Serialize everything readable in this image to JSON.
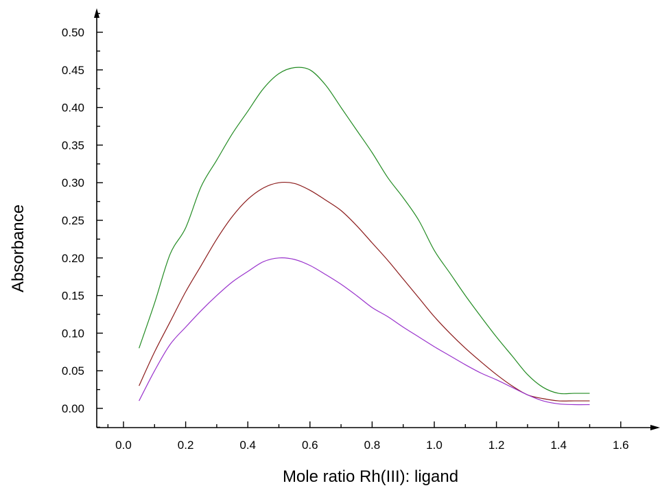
{
  "chart_data": {
    "type": "line",
    "title": "",
    "xlabel": "Mole ratio Rh(III): ligand",
    "ylabel": "Absorbance",
    "xlim": [
      -0.1,
      1.75
    ],
    "ylim": [
      -0.02,
      0.52
    ],
    "xticks": [
      "0.0",
      "0.2",
      "0.4",
      "0.6",
      "0.8",
      "1.0",
      "1.2",
      "1.4",
      "1.6"
    ],
    "yticks": [
      "0.00",
      "0.05",
      "0.10",
      "0.15",
      "0.20",
      "0.25",
      "0.30",
      "0.35",
      "0.40",
      "0.45",
      "0.50"
    ],
    "grid": false,
    "series": [
      {
        "color": "#228B22",
        "x": [
          0.05,
          0.1,
          0.15,
          0.2,
          0.25,
          0.3,
          0.35,
          0.4,
          0.45,
          0.5,
          0.55,
          0.6,
          0.65,
          0.7,
          0.75,
          0.8,
          0.85,
          0.9,
          0.95,
          1.0,
          1.05,
          1.1,
          1.15,
          1.2,
          1.25,
          1.3,
          1.35,
          1.4,
          1.45,
          1.5
        ],
        "y": [
          0.08,
          0.14,
          0.205,
          0.24,
          0.295,
          0.33,
          0.365,
          0.395,
          0.425,
          0.445,
          0.453,
          0.45,
          0.43,
          0.4,
          0.37,
          0.34,
          0.307,
          0.28,
          0.25,
          0.21,
          0.18,
          0.15,
          0.122,
          0.095,
          0.07,
          0.045,
          0.028,
          0.02,
          0.02,
          0.02
        ]
      },
      {
        "color": "#8B1A1A",
        "x": [
          0.05,
          0.1,
          0.15,
          0.2,
          0.25,
          0.3,
          0.35,
          0.4,
          0.45,
          0.5,
          0.55,
          0.6,
          0.65,
          0.7,
          0.75,
          0.8,
          0.85,
          0.9,
          0.95,
          1.0,
          1.05,
          1.1,
          1.15,
          1.2,
          1.25,
          1.3,
          1.35,
          1.4,
          1.45,
          1.5
        ],
        "y": [
          0.03,
          0.075,
          0.115,
          0.155,
          0.19,
          0.225,
          0.255,
          0.278,
          0.293,
          0.3,
          0.299,
          0.29,
          0.277,
          0.263,
          0.243,
          0.22,
          0.197,
          0.172,
          0.147,
          0.122,
          0.1,
          0.08,
          0.062,
          0.045,
          0.03,
          0.018,
          0.013,
          0.01,
          0.01,
          0.01
        ]
      },
      {
        "color": "#9932CC",
        "x": [
          0.05,
          0.1,
          0.15,
          0.2,
          0.25,
          0.3,
          0.35,
          0.4,
          0.45,
          0.5,
          0.55,
          0.6,
          0.65,
          0.7,
          0.75,
          0.8,
          0.85,
          0.9,
          0.95,
          1.0,
          1.05,
          1.1,
          1.15,
          1.2,
          1.25,
          1.3,
          1.35,
          1.4,
          1.45,
          1.5
        ],
        "y": [
          0.01,
          0.05,
          0.085,
          0.108,
          0.13,
          0.15,
          0.168,
          0.182,
          0.195,
          0.2,
          0.198,
          0.19,
          0.178,
          0.165,
          0.15,
          0.134,
          0.122,
          0.108,
          0.095,
          0.082,
          0.07,
          0.058,
          0.047,
          0.038,
          0.028,
          0.018,
          0.01,
          0.006,
          0.005,
          0.005
        ]
      }
    ]
  }
}
